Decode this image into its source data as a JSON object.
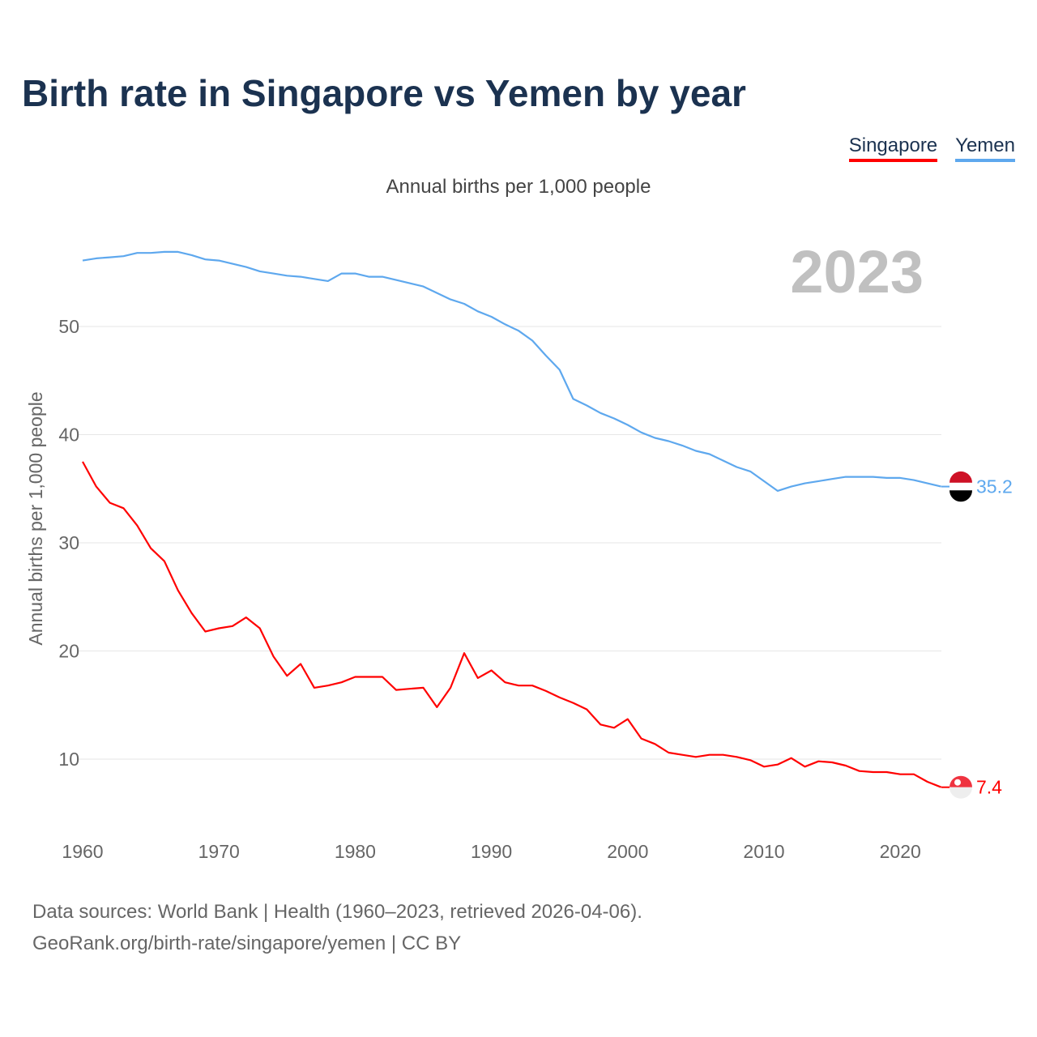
{
  "title": "Birth rate in Singapore vs Yemen by year",
  "legend": [
    {
      "name": "Singapore",
      "color": "#ff0000"
    },
    {
      "name": "Yemen",
      "color": "#5ea8ee"
    }
  ],
  "footer": {
    "line1": "Data sources: World Bank | Health (1960–2023, retrieved 2026-04-06).",
    "line2": "GeoRank.org/birth-rate/singapore/yemen | CC BY"
  },
  "chart_data": {
    "type": "line",
    "title": "Birth rate in Singapore vs Yemen by year",
    "subtitle": "Annual births per 1,000 people",
    "ylabel": "Annual births per 1,000 people",
    "xlabel": "",
    "year_label": "2023",
    "xlim": [
      1960,
      2023
    ],
    "ylim": [
      5,
      60
    ],
    "xticks": [
      1960,
      1970,
      1980,
      1990,
      2000,
      2010,
      2020
    ],
    "yticks": [
      10,
      20,
      30,
      40,
      50
    ],
    "grid": true,
    "legend_position": "top-right",
    "x_start": 1960,
    "series": [
      {
        "name": "Singapore",
        "color": "#ff0000",
        "end_label": "7.4",
        "values": [
          37.5,
          35.2,
          33.7,
          33.2,
          31.6,
          29.5,
          28.3,
          25.6,
          23.5,
          21.8,
          22.1,
          22.3,
          23.1,
          22.1,
          19.5,
          17.7,
          18.8,
          16.6,
          16.8,
          17.1,
          17.6,
          17.6,
          17.6,
          16.4,
          16.5,
          16.6,
          14.8,
          16.6,
          19.8,
          17.5,
          18.2,
          17.1,
          16.8,
          16.8,
          16.3,
          15.7,
          15.2,
          14.6,
          13.2,
          12.9,
          13.7,
          11.9,
          11.4,
          10.6,
          10.4,
          10.2,
          10.4,
          10.4,
          10.2,
          9.9,
          9.3,
          9.5,
          10.1,
          9.3,
          9.8,
          9.7,
          9.4,
          8.9,
          8.8,
          8.8,
          8.6,
          8.6,
          7.9,
          7.4
        ]
      },
      {
        "name": "Yemen",
        "color": "#5ea8ee",
        "end_label": "35.2",
        "values": [
          56.1,
          56.3,
          56.4,
          56.5,
          56.8,
          56.8,
          56.9,
          56.9,
          56.6,
          56.2,
          56.1,
          55.8,
          55.5,
          55.1,
          54.9,
          54.7,
          54.6,
          54.4,
          54.2,
          54.9,
          54.9,
          54.6,
          54.6,
          54.3,
          54.0,
          53.7,
          53.1,
          52.5,
          52.1,
          51.4,
          50.9,
          50.2,
          49.6,
          48.7,
          47.3,
          46.0,
          43.3,
          42.7,
          42.0,
          41.5,
          40.9,
          40.2,
          39.7,
          39.4,
          39.0,
          38.5,
          38.2,
          37.6,
          37.0,
          36.6,
          35.7,
          34.8,
          35.2,
          35.5,
          35.7,
          35.9,
          36.1,
          36.1,
          36.1,
          36.0,
          36.0,
          35.8,
          35.5,
          35.2
        ]
      }
    ]
  }
}
